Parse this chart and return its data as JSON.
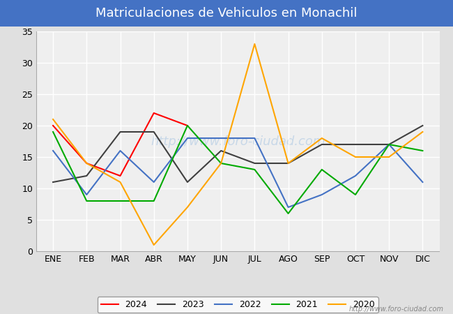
{
  "title": "Matriculaciones de Vehiculos en Monachil",
  "title_color": "#ffffff",
  "title_bg_color": "#4472c4",
  "months": [
    "ENE",
    "FEB",
    "MAR",
    "ABR",
    "MAY",
    "JUN",
    "JUL",
    "AGO",
    "SEP",
    "OCT",
    "NOV",
    "DIC"
  ],
  "series": {
    "2024": {
      "color": "#ff0000",
      "data": [
        20,
        14,
        12,
        22,
        20,
        null,
        null,
        null,
        null,
        null,
        null,
        null
      ]
    },
    "2023": {
      "color": "#404040",
      "data": [
        11,
        12,
        19,
        19,
        11,
        16,
        14,
        14,
        17,
        17,
        17,
        20
      ]
    },
    "2022": {
      "color": "#4472c4",
      "data": [
        16,
        9,
        16,
        11,
        18,
        18,
        18,
        7,
        9,
        12,
        17,
        11
      ]
    },
    "2021": {
      "color": "#00aa00",
      "data": [
        19,
        8,
        8,
        8,
        20,
        14,
        13,
        6,
        13,
        9,
        17,
        16
      ]
    },
    "2020": {
      "color": "#ffa500",
      "data": [
        21,
        14,
        11,
        1,
        7,
        14,
        33,
        14,
        18,
        15,
        15,
        19
      ]
    }
  },
  "ylim": [
    0,
    35
  ],
  "yticks": [
    0,
    5,
    10,
    15,
    20,
    25,
    30,
    35
  ],
  "bg_color": "#e0e0e0",
  "plot_bg_color": "#efefef",
  "grid_color": "#ffffff",
  "watermark": "http://www.foro-ciudad.com",
  "watermark_color": "#c8d8e8"
}
